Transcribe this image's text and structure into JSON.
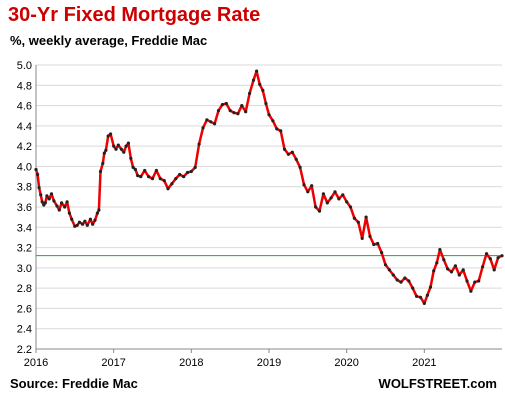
{
  "header": {
    "title": "30-Yr Fixed Mortgage  Rate",
    "subtitle": "%, weekly average, Freddie Mac"
  },
  "footer": {
    "source": "Source: Freddie Mac",
    "brand": "WOLFSTREET.com"
  },
  "colors": {
    "title": "#cc0000",
    "line": "#ee0000",
    "markers": "#222222",
    "refline": "#2e9e3e",
    "grid": "#d9d9d9",
    "axis": "#888888"
  },
  "chart_data": {
    "type": "line",
    "title": "30-Yr Fixed Mortgage  Rate",
    "subtitle": "%, weekly average, Freddie Mac",
    "xlabel": "",
    "ylabel": "",
    "xlim": [
      2016.0,
      2022.0
    ],
    "ylim": [
      2.2,
      5.0
    ],
    "yticks": [
      "5.0",
      "4.8",
      "4.6",
      "4.4",
      "4.2",
      "4.0",
      "3.8",
      "3.6",
      "3.4",
      "3.2",
      "3.0",
      "2.8",
      "2.6",
      "2.4",
      "2.2"
    ],
    "xticks": [
      "2016",
      "2017",
      "2018",
      "2019",
      "2020",
      "2021"
    ],
    "grid": "horizontal",
    "reference_line": 3.12,
    "series": [
      {
        "x": [
          2016.0,
          2016.02,
          2016.04,
          2016.06,
          2016.08,
          2016.1,
          2016.12,
          2016.14,
          2016.17,
          2016.2,
          2016.23,
          2016.27,
          2016.3,
          2016.33,
          2016.37,
          2016.4,
          2016.43,
          2016.46,
          2016.5,
          2016.53,
          2016.56,
          2016.6,
          2016.63,
          2016.66,
          2016.7,
          2016.73,
          2016.76,
          2016.79,
          2016.81,
          2016.83,
          2016.86,
          2016.88,
          2016.9,
          2016.93,
          2016.96,
          2017.0,
          2017.03,
          2017.06,
          2017.1,
          2017.13,
          2017.16,
          2017.19,
          2017.22,
          2017.25,
          2017.28,
          2017.31,
          2017.35,
          2017.4,
          2017.45,
          2017.5,
          2017.55,
          2017.6,
          2017.65,
          2017.7,
          2017.75,
          2017.8,
          2017.85,
          2017.9,
          2017.95,
          2018.0,
          2018.05,
          2018.1,
          2018.15,
          2018.2,
          2018.25,
          2018.3,
          2018.35,
          2018.4,
          2018.45,
          2018.5,
          2018.55,
          2018.6,
          2018.65,
          2018.7,
          2018.75,
          2018.8,
          2018.84,
          2018.88,
          2018.92,
          2018.96,
          2019.0,
          2019.05,
          2019.1,
          2019.15,
          2019.2,
          2019.25,
          2019.3,
          2019.35,
          2019.4,
          2019.45,
          2019.5,
          2019.55,
          2019.6,
          2019.65,
          2019.7,
          2019.75,
          2019.8,
          2019.85,
          2019.9,
          2019.95,
          2020.0,
          2020.05,
          2020.1,
          2020.15,
          2020.2,
          2020.25,
          2020.3,
          2020.35,
          2020.4,
          2020.45,
          2020.5,
          2020.55,
          2020.6,
          2020.65,
          2020.7,
          2020.75,
          2020.8,
          2020.85,
          2020.9,
          2020.95,
          2021.0,
          2021.04,
          2021.08,
          2021.12,
          2021.16,
          2021.2,
          2021.25,
          2021.3,
          2021.35,
          2021.4,
          2021.45,
          2021.5,
          2021.55,
          2021.6,
          2021.65,
          2021.7,
          2021.75,
          2021.8,
          2021.85,
          2021.9,
          2021.95,
          2022.0
        ],
        "y": [
          3.97,
          3.92,
          3.79,
          3.72,
          3.65,
          3.62,
          3.64,
          3.71,
          3.68,
          3.73,
          3.66,
          3.61,
          3.57,
          3.64,
          3.6,
          3.65,
          3.54,
          3.48,
          3.41,
          3.42,
          3.45,
          3.43,
          3.46,
          3.42,
          3.48,
          3.43,
          3.47,
          3.54,
          3.57,
          3.95,
          4.03,
          4.13,
          4.16,
          4.3,
          4.32,
          4.2,
          4.17,
          4.21,
          4.17,
          4.14,
          4.2,
          4.23,
          4.08,
          3.99,
          3.97,
          3.91,
          3.9,
          3.96,
          3.9,
          3.88,
          3.96,
          3.88,
          3.86,
          3.78,
          3.83,
          3.88,
          3.92,
          3.9,
          3.94,
          3.95,
          3.99,
          4.22,
          4.38,
          4.46,
          4.44,
          4.42,
          4.55,
          4.61,
          4.62,
          4.55,
          4.53,
          4.52,
          4.6,
          4.54,
          4.72,
          4.85,
          4.94,
          4.81,
          4.75,
          4.62,
          4.51,
          4.45,
          4.37,
          4.35,
          4.17,
          4.12,
          4.14,
          4.07,
          3.99,
          3.82,
          3.75,
          3.81,
          3.6,
          3.56,
          3.73,
          3.64,
          3.69,
          3.75,
          3.68,
          3.72,
          3.65,
          3.6,
          3.49,
          3.45,
          3.29,
          3.5,
          3.31,
          3.23,
          3.24,
          3.15,
          3.03,
          2.98,
          2.93,
          2.88,
          2.86,
          2.9,
          2.87,
          2.8,
          2.72,
          2.71,
          2.65,
          2.73,
          2.81,
          2.97,
          3.05,
          3.18,
          3.08,
          2.99,
          2.96,
          3.02,
          2.93,
          2.98,
          2.87,
          2.77,
          2.86,
          2.87,
          3.01,
          3.14,
          3.09,
          2.98,
          3.1,
          3.12
        ]
      }
    ]
  }
}
